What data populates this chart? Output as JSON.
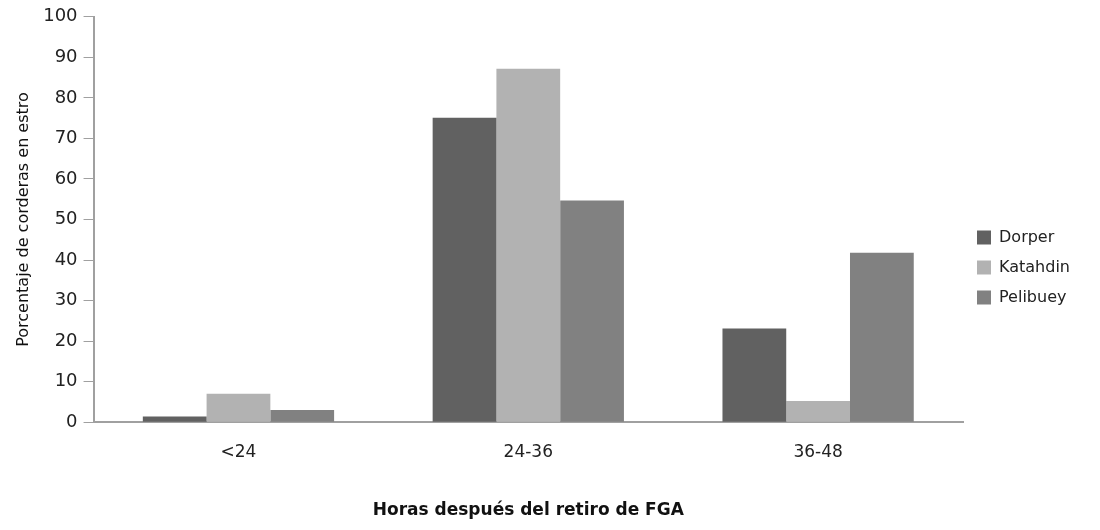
{
  "chart_data": {
    "type": "bar",
    "xlabel": "Horas después del retiro de FGA",
    "ylabel": "Porcentaje de corderas en estro",
    "categories": [
      "<24",
      "24-36",
      "36-48"
    ],
    "series": [
      {
        "name": "Dorper",
        "color": "#616161",
        "values": [
          1.4,
          75.1,
          23.1
        ]
      },
      {
        "name": "Katahdin",
        "color": "#b2b2b2",
        "values": [
          7.0,
          87.2,
          5.2
        ]
      },
      {
        "name": "Pelibuey",
        "color": "#818181",
        "values": [
          3.0,
          54.7,
          41.8
        ]
      }
    ],
    "ylim": [
      0,
      100
    ],
    "yticks": [
      0,
      10,
      20,
      30,
      40,
      50,
      60,
      70,
      80,
      90,
      100
    ],
    "grid": false,
    "legend": "right"
  }
}
